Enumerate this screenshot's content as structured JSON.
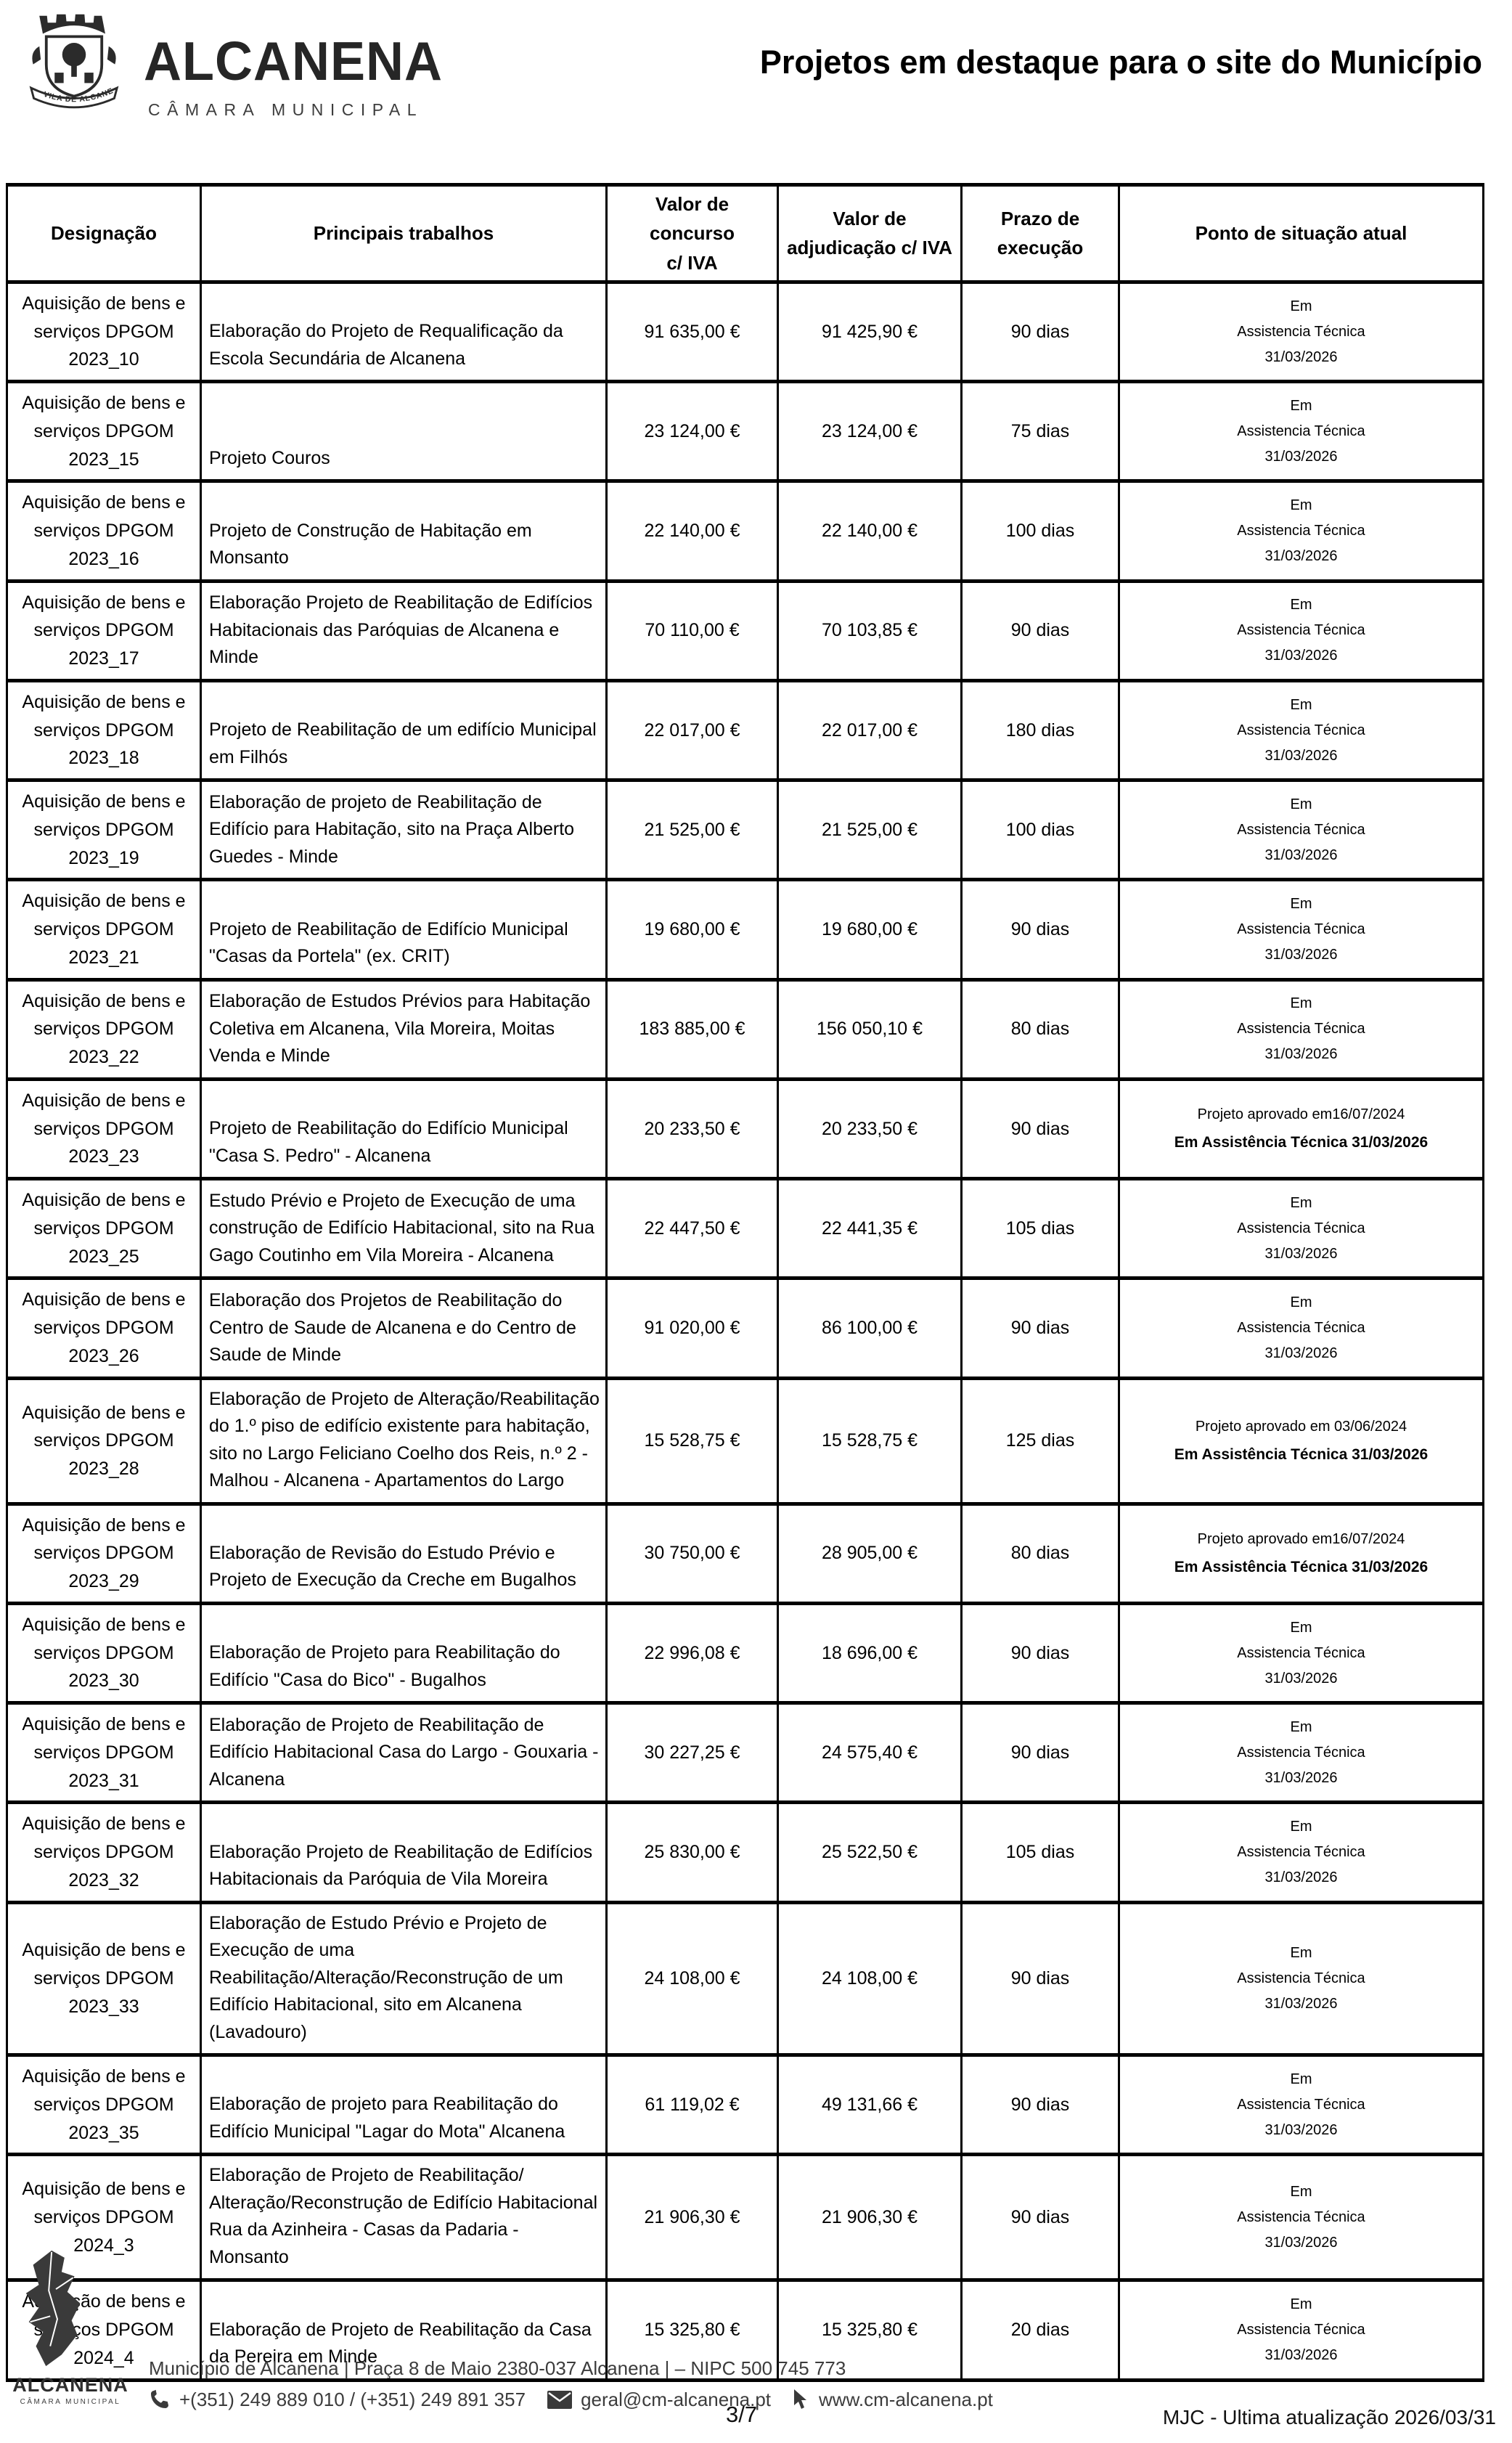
{
  "header": {
    "crest_motto": "VILA DE ALCANENA",
    "brand_name": "ALCANENA",
    "brand_subtitle": "CÂMARA MUNICIPAL",
    "title": "Projetos em destaque para o site do Município"
  },
  "table": {
    "headers": [
      "Designação",
      "Principais trabalhos",
      "Valor de concurso\nc/ IVA",
      "Valor de\nadjudicação c/ IVA",
      "Prazo de\nexecução",
      "Ponto de situação atual"
    ],
    "rows": [
      {
        "designacao_l1": "Aquisição de bens e",
        "designacao_l2": "serviços DPGOM",
        "id": "2023_10",
        "trabalhos": "Elaboração do Projeto de Requalificação da Escola Secundária de Alcanena",
        "concurso": "91 635,00 €",
        "adjudicacao": "91 425,90 €",
        "prazo": "90 dias",
        "status": {
          "lines": [
            "Em",
            "Assistencia Técnica",
            "31/03/2026"
          ]
        }
      },
      {
        "designacao_l1": "Aquisição de bens e",
        "designacao_l2": "serviços DPGOM",
        "id": "2023_15",
        "trabalhos": "Projeto Couros",
        "concurso": "23 124,00 €",
        "adjudicacao": "23 124,00 €",
        "prazo": "75 dias",
        "status": {
          "lines": [
            "Em",
            "Assistencia Técnica",
            "31/03/2026"
          ]
        }
      },
      {
        "designacao_l1": "Aquisição de bens e",
        "designacao_l2": "serviços DPGOM",
        "id": "2023_16",
        "trabalhos": "Projeto de Construção de Habitação em Monsanto",
        "concurso": "22 140,00 €",
        "adjudicacao": "22 140,00 €",
        "prazo": "100 dias",
        "status": {
          "lines": [
            "Em",
            "Assistencia Técnica",
            "31/03/2026"
          ]
        }
      },
      {
        "designacao_l1": "Aquisição de bens e",
        "designacao_l2": "serviços DPGOM",
        "id": "2023_17",
        "trabalhos": "Elaboração Projeto de Reabilitação de Edifícios Habitacionais das Paróquias de Alcanena e Minde",
        "concurso": "70 110,00 €",
        "adjudicacao": "70 103,85 €",
        "prazo": "90 dias",
        "status": {
          "lines": [
            "Em",
            "Assistencia Técnica",
            "31/03/2026"
          ]
        }
      },
      {
        "designacao_l1": "Aquisição de bens e",
        "designacao_l2": "serviços DPGOM",
        "id": "2023_18",
        "trabalhos": "Projeto de Reabilitação de um edifício Municipal em Filhós",
        "concurso": "22 017,00 €",
        "adjudicacao": "22 017,00 €",
        "prazo": "180 dias",
        "status": {
          "lines": [
            "Em",
            "Assistencia Técnica",
            "31/03/2026"
          ]
        }
      },
      {
        "designacao_l1": "Aquisição de bens e",
        "designacao_l2": "serviços DPGOM",
        "id": "2023_19",
        "trabalhos": "Elaboração de projeto de Reabilitação de Edifício para Habitação, sito na Praça Alberto Guedes - Minde",
        "concurso": "21 525,00 €",
        "adjudicacao": "21 525,00 €",
        "prazo": "100 dias",
        "status": {
          "lines": [
            "Em",
            "Assistencia Técnica",
            "31/03/2026"
          ]
        }
      },
      {
        "designacao_l1": "Aquisição de bens e",
        "designacao_l2": "serviços DPGOM",
        "id": "2023_21",
        "trabalhos": "Projeto de Reabilitação de Edifício Municipal \"Casas da Portela\" (ex. CRIT)",
        "concurso": "19 680,00 €",
        "adjudicacao": "19 680,00 €",
        "prazo": "90 dias",
        "status": {
          "lines": [
            "Em",
            "Assistencia Técnica",
            "31/03/2026"
          ]
        }
      },
      {
        "designacao_l1": "Aquisição de bens e",
        "designacao_l2": "serviços DPGOM",
        "id": "2023_22",
        "trabalhos": "Elaboração de Estudos Prévios para Habitação Coletiva em Alcanena, Vila Moreira, Moitas Venda e Minde",
        "concurso": "183 885,00 €",
        "adjudicacao": "156 050,10 €",
        "prazo": "80 dias",
        "status": {
          "lines": [
            "Em",
            "Assistencia Técnica",
            "31/03/2026"
          ]
        }
      },
      {
        "designacao_l1": "Aquisição de bens e",
        "designacao_l2": "serviços DPGOM",
        "id": "2023_23",
        "trabalhos": "Projeto de Reabilitação do Edifício Municipal \"Casa S. Pedro\" - Alcanena",
        "concurso": "20 233,50 €",
        "adjudicacao": "20 233,50 €",
        "prazo": "90 dias",
        "status": {
          "approved": "Projeto aprovado em16/07/2024",
          "bold": "Em Assistência Técnica  31/03/2026"
        }
      },
      {
        "designacao_l1": "Aquisição de bens e",
        "designacao_l2": "serviços DPGOM",
        "id": "2023_25",
        "trabalhos": "Estudo Prévio e Projeto de Execução de uma construção de Edifício Habitacional, sito na Rua Gago Coutinho em Vila Moreira - Alcanena",
        "concurso": "22 447,50 €",
        "adjudicacao": "22 441,35 €",
        "prazo": "105 dias",
        "status": {
          "lines": [
            "Em",
            "Assistencia Técnica",
            "31/03/2026"
          ]
        }
      },
      {
        "designacao_l1": "Aquisição de bens e",
        "designacao_l2": "serviços DPGOM",
        "id": "2023_26",
        "trabalhos": "Elaboração dos Projetos de Reabilitação do Centro de Saude de Alcanena e do Centro de Saude de Minde",
        "concurso": "91 020,00 €",
        "adjudicacao": "86 100,00 €",
        "prazo": "90 dias",
        "status": {
          "lines": [
            "Em",
            "Assistencia Técnica",
            "31/03/2026"
          ]
        }
      },
      {
        "designacao_l1": "Aquisição de bens e",
        "designacao_l2": "serviços DPGOM",
        "id": "2023_28",
        "trabalhos": "Elaboração de Projeto de Alteração/Reabilitação do 1.º piso de edifício existente para habitação, sito no Largo Feliciano Coelho dos Reis, n.º 2 - Malhou - Alcanena - Apartamentos do Largo",
        "concurso": "15 528,75 €",
        "adjudicacao": "15 528,75 €",
        "prazo": "125 dias",
        "status": {
          "approved": "Projeto aprovado em 03/06/2024",
          "bold": "Em Assistência Técnica 31/03/2026"
        }
      },
      {
        "designacao_l1": "Aquisição de bens e",
        "designacao_l2": "serviços DPGOM",
        "id": "2023_29",
        "trabalhos": "Elaboração de Revisão do Estudo Prévio e Projeto de Execução da Creche em Bugalhos",
        "concurso": "30 750,00 €",
        "adjudicacao": "28 905,00 €",
        "prazo": "80 dias",
        "status": {
          "approved": "Projeto aprovado em16/07/2024",
          "bold": "Em Assistência Técnica  31/03/2026"
        }
      },
      {
        "designacao_l1": "Aquisição de bens e",
        "designacao_l2": "serviços DPGOM",
        "id": "2023_30",
        "trabalhos": "Elaboração de Projeto para Reabilitação do Edifício \"Casa do Bico\" - Bugalhos",
        "concurso": "22 996,08 €",
        "adjudicacao": "18 696,00 €",
        "prazo": "90 dias",
        "status": {
          "lines": [
            "Em",
            "Assistencia Técnica",
            "31/03/2026"
          ]
        }
      },
      {
        "designacao_l1": "Aquisição de bens e",
        "designacao_l2": "serviços DPGOM",
        "id": "2023_31",
        "trabalhos": "Elaboração de Projeto de Reabilitação de Edifício Habitacional Casa do Largo - Gouxaria - Alcanena",
        "concurso": "30 227,25 €",
        "adjudicacao": "24 575,40 €",
        "prazo": "90 dias",
        "status": {
          "lines": [
            "Em",
            "Assistencia Técnica",
            "31/03/2026"
          ]
        }
      },
      {
        "designacao_l1": "Aquisição de bens e",
        "designacao_l2": "serviços DPGOM",
        "id": "2023_32",
        "trabalhos": "Elaboração Projeto de Reabilitação de Edifícios Habitacionais da Paróquia de Vila Moreira",
        "concurso": "25 830,00 €",
        "adjudicacao": "25 522,50 €",
        "prazo": "105 dias",
        "status": {
          "lines": [
            "Em",
            "Assistencia Técnica",
            "31/03/2026"
          ]
        }
      },
      {
        "designacao_l1": "Aquisição de bens e",
        "designacao_l2": "serviços DPGOM",
        "id": "2023_33",
        "trabalhos": "Elaboração de Estudo Prévio e Projeto de Execução de uma Reabilitação/Alteração/Reconstrução de um Edifício Habitacional, sito em Alcanena (Lavadouro)",
        "concurso": "24 108,00 €",
        "adjudicacao": "24 108,00 €",
        "prazo": "90 dias",
        "status": {
          "lines": [
            "Em",
            "Assistencia Técnica",
            "31/03/2026"
          ]
        }
      },
      {
        "designacao_l1": "Aquisição de bens e",
        "designacao_l2": "serviços DPGOM",
        "id": "2023_35",
        "trabalhos": "Elaboração de projeto para Reabilitação do Edifício Municipal \"Lagar do Mota\" Alcanena",
        "concurso": "61 119,02 €",
        "adjudicacao": "49 131,66 €",
        "prazo": "90 dias",
        "status": {
          "lines": [
            "Em",
            "Assistencia Técnica",
            "31/03/2026"
          ]
        }
      },
      {
        "designacao_l1": "Aquisição de bens e",
        "designacao_l2": "serviços DPGOM",
        "id": "2024_3",
        "trabalhos": "Elaboração de Projeto de Reabilitação/ Alteração/Reconstrução de Edifício Habitacional Rua da Azinheira - Casas da Padaria - Monsanto",
        "concurso": "21 906,30 €",
        "adjudicacao": "21 906,30 €",
        "prazo": "90 dias",
        "status": {
          "lines": [
            "Em",
            "Assistencia Técnica",
            "31/03/2026"
          ]
        }
      },
      {
        "designacao_l1": "Aquisição de bens e",
        "designacao_l2": "serviços DPGOM",
        "id": "2024_4",
        "trabalhos": "Elaboração de Projeto de Reabilitação da Casa da Pereira em Minde",
        "concurso": "15 325,80 €",
        "adjudicacao": "15 325,80 €",
        "prazo": "20 dias",
        "status": {
          "lines": [
            "Em",
            "Assistencia Técnica",
            "31/03/2026"
          ]
        }
      }
    ]
  },
  "footer": {
    "brand_name": "ALCANENA",
    "brand_subtitle": "CÂMARA MUNICIPAL",
    "address_line": "Município de Alcanena | Praça 8 de Maio 2380-037 Alcanena | – NIPC 500 745 773",
    "phones": "+(351) 249 889 010 / (+351) 249 891 357",
    "email": "geral@cm-alcanena.pt",
    "website": "www.cm-alcanena.pt",
    "page_number": "3/7",
    "update_note": "MJC - Ultima atualização 2026/03/31"
  }
}
